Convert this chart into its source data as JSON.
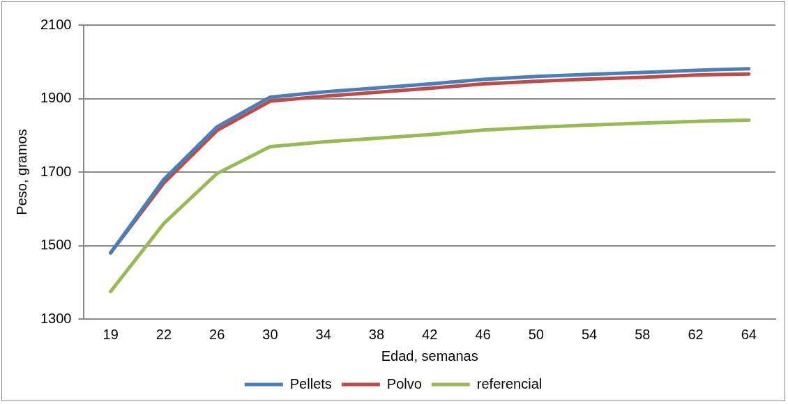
{
  "chart_data": {
    "type": "line",
    "xlabel": "Edad, semanas",
    "ylabel": "Peso, gramos",
    "categories": [
      "19",
      "22",
      "26",
      "30",
      "34",
      "38",
      "42",
      "46",
      "50",
      "54",
      "58",
      "62",
      "64"
    ],
    "series": [
      {
        "name": "Pellets",
        "color": "#4a7ebb",
        "values": [
          1480,
          1680,
          1823,
          1904,
          1918,
          1929,
          1940,
          1952,
          1960,
          1966,
          1971,
          1977,
          1981
        ]
      },
      {
        "name": "Polvo",
        "color": "#be4b48",
        "values": [
          1480,
          1670,
          1813,
          1893,
          1906,
          1917,
          1928,
          1940,
          1947,
          1953,
          1958,
          1964,
          1967
        ]
      },
      {
        "name": "referencial",
        "color": "#98b954",
        "values": [
          1375,
          1560,
          1696,
          1769,
          1782,
          1792,
          1802,
          1814,
          1822,
          1828,
          1833,
          1838,
          1841
        ]
      }
    ],
    "ylim": [
      1300,
      2100
    ],
    "yticks": [
      1300,
      1500,
      1700,
      1900,
      2100
    ],
    "grid": "y",
    "legend": "bottom",
    "marker": "none",
    "line_style": "solid"
  }
}
